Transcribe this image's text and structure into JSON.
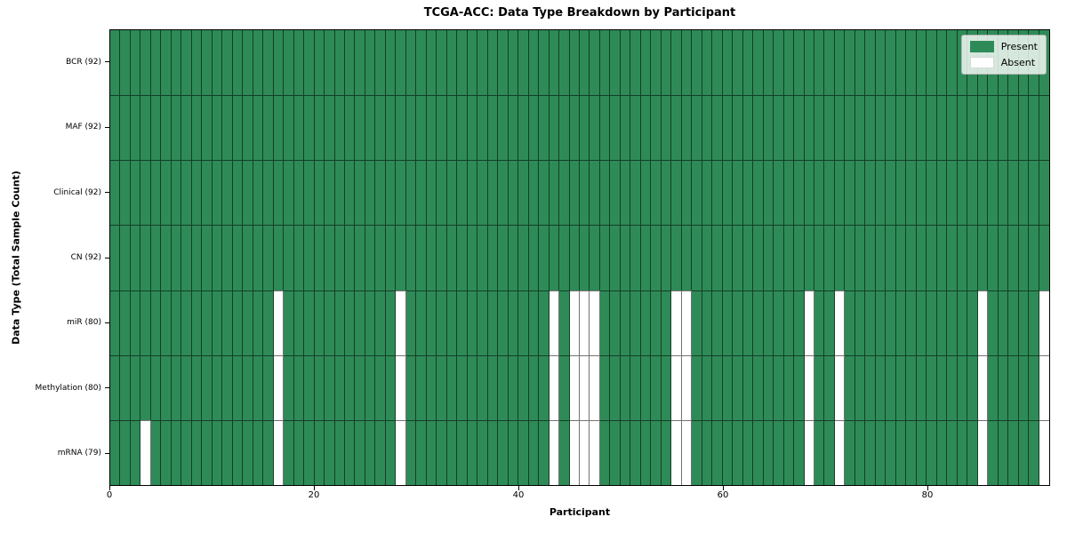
{
  "chart_data": {
    "type": "heatmap",
    "title": "TCGA-ACC: Data Type Breakdown by Participant",
    "xlabel": "Participant",
    "ylabel": "Data Type (Total Sample Count)",
    "x_ticks": [
      0,
      20,
      40,
      60,
      80
    ],
    "x_range": [
      0,
      92
    ],
    "n_participants": 92,
    "grid": "cell-borders",
    "legend_position": "upper right",
    "rows": [
      {
        "label": "BCR (92)",
        "data_type": "BCR",
        "present_count": 92,
        "absent_participants": []
      },
      {
        "label": "MAF (92)",
        "data_type": "MAF",
        "present_count": 92,
        "absent_participants": []
      },
      {
        "label": "Clinical (92)",
        "data_type": "Clinical",
        "present_count": 92,
        "absent_participants": []
      },
      {
        "label": "CN (92)",
        "data_type": "CN",
        "present_count": 92,
        "absent_participants": []
      },
      {
        "label": "miR (80)",
        "data_type": "miR",
        "present_count": 80,
        "absent_participants": [
          16,
          28,
          43,
          45,
          46,
          47,
          55,
          56,
          68,
          71,
          85,
          91
        ]
      },
      {
        "label": "Methylation (80)",
        "data_type": "Methylation",
        "present_count": 80,
        "absent_participants": [
          16,
          28,
          43,
          45,
          46,
          47,
          55,
          56,
          68,
          71,
          85,
          91
        ]
      },
      {
        "label": "mRNA (79)",
        "data_type": "mRNA",
        "present_count": 79,
        "absent_participants": [
          3,
          16,
          28,
          43,
          45,
          46,
          47,
          55,
          56,
          68,
          71,
          85,
          91
        ]
      }
    ],
    "legend": [
      {
        "label": "Present",
        "color": "#2e8b57"
      },
      {
        "label": "Absent",
        "color": "#ffffff"
      }
    ],
    "colors": {
      "present": "#2e8b57",
      "absent": "#ffffff"
    }
  }
}
